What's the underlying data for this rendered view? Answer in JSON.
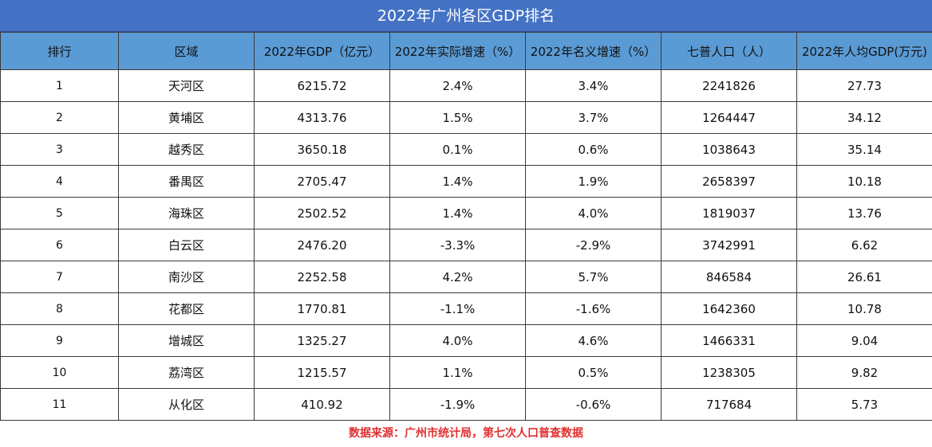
{
  "title": "2022年广州各区GDP排名",
  "columns": [
    "排行",
    "区域",
    "2022年GDP（亿元）",
    "2022年实际增速（%）",
    "2022年名义增速（%）",
    "七普人口（人）",
    "2022年人均GDP(万元)"
  ],
  "rows": [
    {
      "rank": "1",
      "district": "天河区",
      "gdp": "6215.72",
      "real_growth": "2.4%",
      "nominal_growth": "3.4%",
      "population": "2241826",
      "gdp_per_capita": "27.73"
    },
    {
      "rank": "2",
      "district": "黄埔区",
      "gdp": "4313.76",
      "real_growth": "1.5%",
      "nominal_growth": "3.7%",
      "population": "1264447",
      "gdp_per_capita": "34.12"
    },
    {
      "rank": "3",
      "district": "越秀区",
      "gdp": "3650.18",
      "real_growth": "0.1%",
      "nominal_growth": "0.6%",
      "population": "1038643",
      "gdp_per_capita": "35.14"
    },
    {
      "rank": "4",
      "district": "番禺区",
      "gdp": "2705.47",
      "real_growth": "1.4%",
      "nominal_growth": "1.9%",
      "population": "2658397",
      "gdp_per_capita": "10.18"
    },
    {
      "rank": "5",
      "district": "海珠区",
      "gdp": "2502.52",
      "real_growth": "1.4%",
      "nominal_growth": "4.0%",
      "population": "1819037",
      "gdp_per_capita": "13.76"
    },
    {
      "rank": "6",
      "district": "白云区",
      "gdp": "2476.20",
      "real_growth": "-3.3%",
      "nominal_growth": "-2.9%",
      "population": "3742991",
      "gdp_per_capita": "6.62"
    },
    {
      "rank": "7",
      "district": "南沙区",
      "gdp": "2252.58",
      "real_growth": "4.2%",
      "nominal_growth": "5.7%",
      "population": "846584",
      "gdp_per_capita": "26.61"
    },
    {
      "rank": "8",
      "district": "花都区",
      "gdp": "1770.81",
      "real_growth": "-1.1%",
      "nominal_growth": "-1.6%",
      "population": "1642360",
      "gdp_per_capita": "10.78"
    },
    {
      "rank": "9",
      "district": "增城区",
      "gdp": "1325.27",
      "real_growth": "4.0%",
      "nominal_growth": "4.6%",
      "population": "1466331",
      "gdp_per_capita": "9.04"
    },
    {
      "rank": "10",
      "district": "荔湾区",
      "gdp": "1215.57",
      "real_growth": "1.1%",
      "nominal_growth": "0.5%",
      "population": "1238305",
      "gdp_per_capita": "9.82"
    },
    {
      "rank": "11",
      "district": "从化区",
      "gdp": "410.92",
      "real_growth": "-1.9%",
      "nominal_growth": "-0.6%",
      "population": "717684",
      "gdp_per_capita": "5.73"
    }
  ],
  "source_note": "数据来源：广州市统计局，第七次人口普查数据",
  "colors": {
    "title_bg": "#4472c4",
    "header_bg": "#5b9bd5",
    "source_text": "#e03030"
  }
}
